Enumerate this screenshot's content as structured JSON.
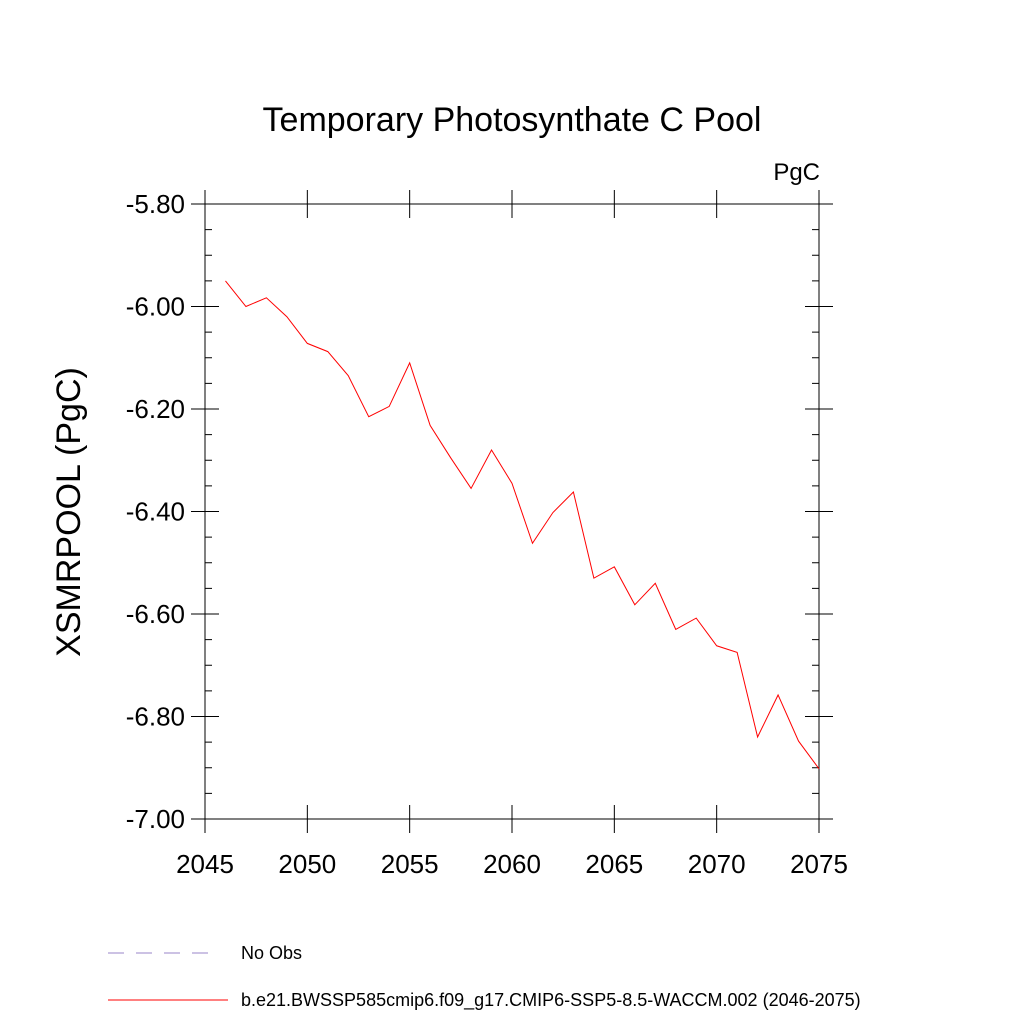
{
  "chart_data": {
    "type": "line",
    "title": "Temporary Photosynthate C Pool",
    "unit_label": "PgC",
    "ylabel": "XSMRPOOL  (PgC)",
    "xlabel": "",
    "xlim": [
      2045,
      2075
    ],
    "ylim": [
      -7.0,
      -5.8
    ],
    "x_ticks": [
      2045,
      2050,
      2055,
      2060,
      2065,
      2070,
      2075
    ],
    "x_tick_labels": [
      "2045",
      "2050",
      "2055",
      "2060",
      "2065",
      "2070",
      "2075"
    ],
    "y_ticks": [
      -7.0,
      -6.8,
      -6.6,
      -6.4,
      -6.2,
      -6.0,
      -5.8
    ],
    "y_tick_labels": [
      "-7.00",
      "-6.80",
      "-6.60",
      "-6.40",
      "-6.20",
      "-6.00",
      "-5.80"
    ],
    "series": [
      {
        "name": "b.e21.BWSSP585cmip6.f09_g17.CMIP6-SSP5-8.5-WACCM.002 (2046-2075)",
        "color": "#ff0000",
        "x": [
          2046,
          2047,
          2048,
          2049,
          2050,
          2051,
          2052,
          2053,
          2054,
          2055,
          2056,
          2057,
          2058,
          2059,
          2060,
          2061,
          2062,
          2063,
          2064,
          2065,
          2066,
          2067,
          2068,
          2069,
          2070,
          2071,
          2072,
          2073,
          2074,
          2075
        ],
        "values": [
          -5.95,
          -6.0,
          -5.983,
          -6.02,
          -6.072,
          -6.088,
          -6.135,
          -6.215,
          -6.195,
          -6.11,
          -6.232,
          -6.295,
          -6.355,
          -6.28,
          -6.345,
          -6.462,
          -6.402,
          -6.362,
          -6.53,
          -6.508,
          -6.582,
          -6.54,
          -6.63,
          -6.608,
          -6.662,
          -6.675,
          -6.84,
          -6.758,
          -6.848,
          -6.902
        ]
      }
    ],
    "legend": {
      "placement": "bottom-left",
      "entries": [
        {
          "label": "No Obs",
          "style": "dashed",
          "color": "#9a86c8"
        },
        {
          "label": "b.e21.BWSSP585cmip6.f09_g17.CMIP6-SSP5-8.5-WACCM.002 (2046-2075)",
          "style": "solid",
          "color": "#ff0000"
        }
      ]
    },
    "grid": false
  }
}
